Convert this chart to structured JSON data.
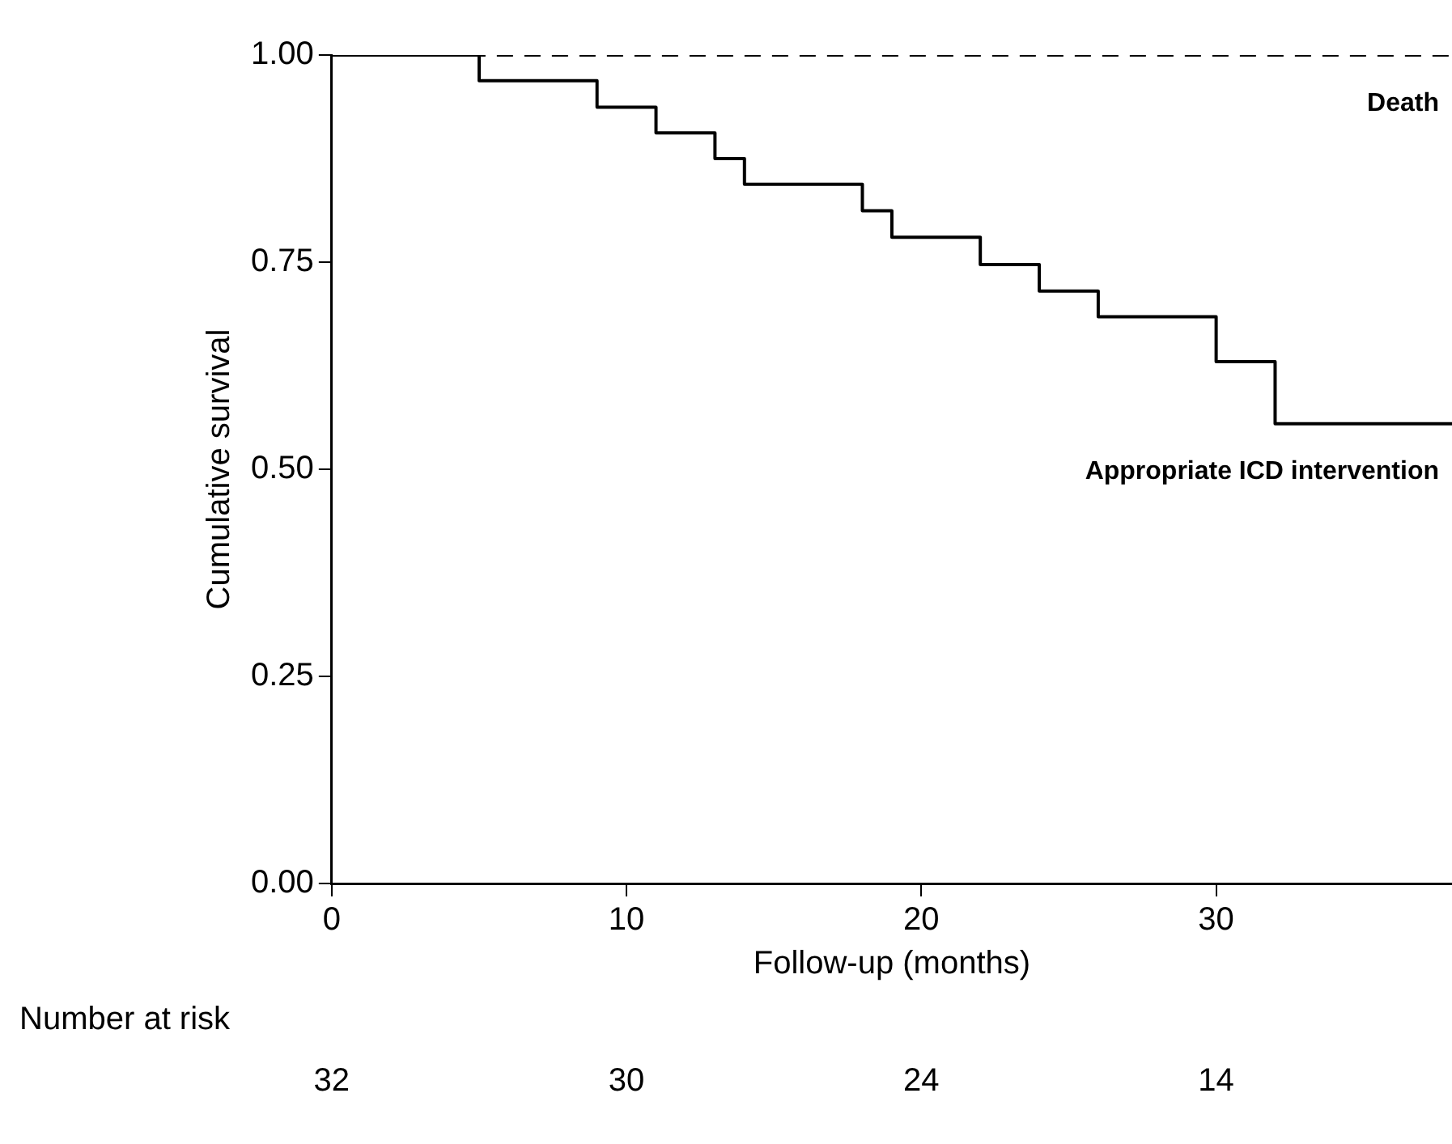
{
  "chart_data": {
    "type": "step",
    "xlabel": "Follow-up (months)",
    "ylabel": "Cumulative survival",
    "xlim": [
      0,
      38
    ],
    "xticks": [
      0,
      10,
      20,
      30
    ],
    "ylim": [
      0,
      1
    ],
    "yticks": [
      {
        "value": 0,
        "label": "0.00"
      },
      {
        "value": 0.25,
        "label": "0.25"
      },
      {
        "value": 0.5,
        "label": "0.50"
      },
      {
        "value": 0.75,
        "label": "0.75"
      },
      {
        "value": 1,
        "label": "1.00"
      }
    ],
    "grid": false,
    "legend": false,
    "marker": "none",
    "series": [
      {
        "name": "Death",
        "color": "#000000",
        "line_style": "dashed",
        "x": [
          0,
          38
        ],
        "values": [
          1,
          1
        ]
      },
      {
        "name": "Appropriate ICD intervention",
        "color": "#000000",
        "line_style": "solid",
        "x": [
          0,
          5,
          9,
          11,
          13,
          14,
          18,
          19,
          22,
          24,
          26,
          30,
          32,
          38
        ],
        "values": [
          1,
          0.969,
          0.937,
          0.906,
          0.875,
          0.844,
          0.812,
          0.78,
          0.747,
          0.715,
          0.684,
          0.63,
          0.555,
          0.555
        ]
      }
    ],
    "annotations": [
      "Number at risk",
      "32",
      "30",
      "24",
      "14"
    ]
  }
}
